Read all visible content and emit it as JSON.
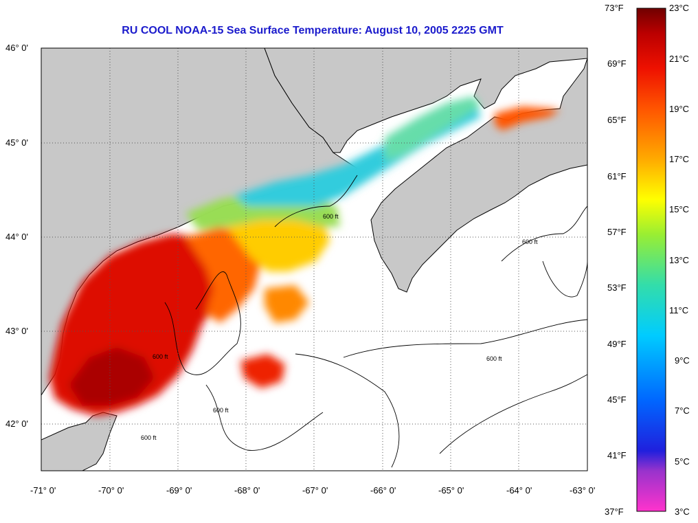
{
  "title": "RU COOL  NOAA-15  Sea Surface Temperature:  August 10, 2005 2225 GMT",
  "map": {
    "lon_labels": [
      "-71° 0'",
      "-70° 0'",
      "-69° 0'",
      "-68° 0'",
      "-67° 0'",
      "-66° 0'",
      "-65° 0'",
      "-64° 0'",
      "-63° 0'"
    ],
    "lat_labels": [
      "46° 0'",
      "45° 0'",
      "44° 0'",
      "43° 0'",
      "42° 0'"
    ],
    "contour_label": "600 ft",
    "colors": {
      "land": "#c8c8c8",
      "water_nodata": "#ffffff",
      "grid": "#555555"
    }
  },
  "colorbar": {
    "fahrenheit_labels": [
      "73°F",
      "69°F",
      "65°F",
      "61°F",
      "57°F",
      "53°F",
      "49°F",
      "45°F",
      "41°F",
      "37°F"
    ],
    "celsius_labels": [
      "23°C",
      "21°C",
      "19°C",
      "17°C",
      "15°C",
      "13°C",
      "11°C",
      "9°C",
      "7°C",
      "5°C",
      "3°C"
    ],
    "range_celsius": [
      3,
      23
    ],
    "colors": [
      "#ff33cc",
      "#9933cc",
      "#2020dd",
      "#0066ff",
      "#00ccff",
      "#33ddaa",
      "#66ee44",
      "#ccff00",
      "#ffee00",
      "#ffaa00",
      "#ff5500",
      "#ee1100",
      "#bb0000",
      "#700000"
    ]
  }
}
